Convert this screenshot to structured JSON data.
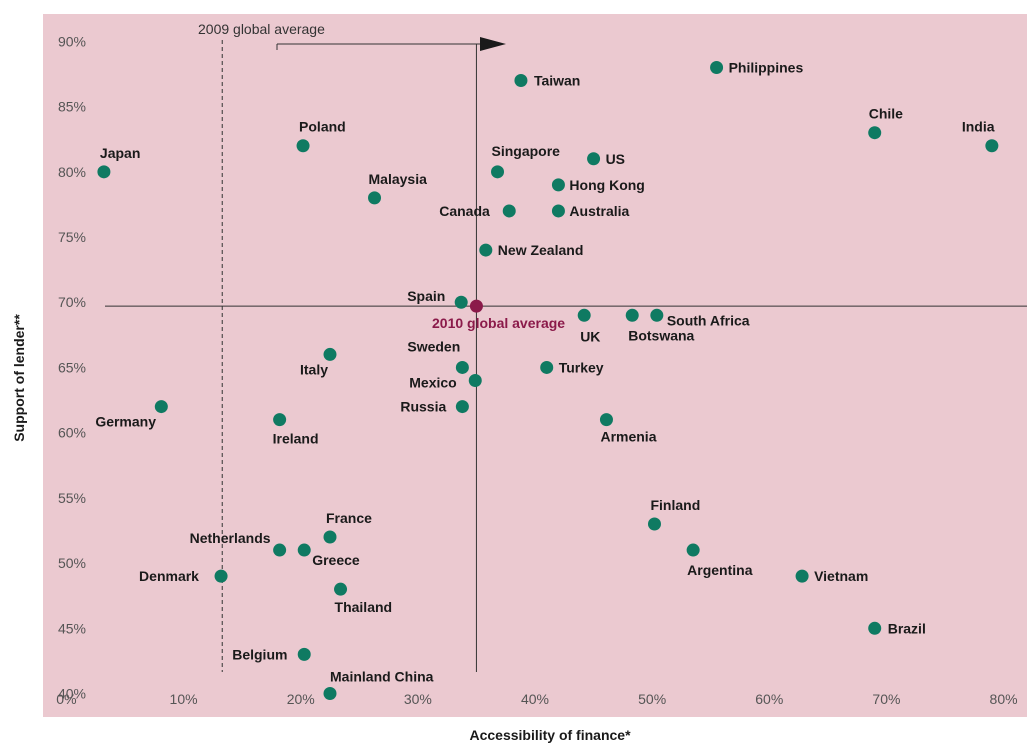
{
  "chart_data": {
    "type": "scatter",
    "xlabel": "Accessibility of finance*",
    "ylabel": "Support of lender**",
    "xlim": [
      -2,
      82
    ],
    "ylim": [
      38.2,
      92.1
    ],
    "x_ticks": [
      0,
      10,
      20,
      30,
      40,
      50,
      60,
      70,
      80
    ],
    "x_tick_labels": [
      "0%",
      "10%",
      "20%",
      "30%",
      "40%",
      "50%",
      "60%",
      "70%",
      "80%"
    ],
    "y_ticks": [
      40,
      45,
      50,
      55,
      60,
      65,
      70,
      75,
      80,
      85,
      90
    ],
    "y_tick_labels": [
      "40%",
      "45%",
      "50%",
      "55%",
      "60%",
      "65%",
      "70%",
      "75%",
      "80%",
      "85%",
      "90%"
    ],
    "grid": false,
    "colors": {
      "background": "#ebc9d0",
      "point": "#0f7a62",
      "highlight": "#8b1a4a",
      "line": "#333333"
    },
    "points": [
      {
        "label": "Japan",
        "x": 3.2,
        "y": 80
      },
      {
        "label": "Poland",
        "x": 20.2,
        "y": 82
      },
      {
        "label": "Malaysia",
        "x": 26.3,
        "y": 78
      },
      {
        "label": "Taiwan",
        "x": 38.8,
        "y": 87
      },
      {
        "label": "Philippines",
        "x": 55.5,
        "y": 88
      },
      {
        "label": "Chile",
        "x": 69,
        "y": 83
      },
      {
        "label": "India",
        "x": 79,
        "y": 82
      },
      {
        "label": "Singapore",
        "x": 36.8,
        "y": 80
      },
      {
        "label": "US",
        "x": 45,
        "y": 81
      },
      {
        "label": "Hong Kong",
        "x": 42,
        "y": 79
      },
      {
        "label": "Canada",
        "x": 37.8,
        "y": 77
      },
      {
        "label": "Australia",
        "x": 42,
        "y": 77
      },
      {
        "label": "New Zealand",
        "x": 35.8,
        "y": 74
      },
      {
        "label": "Spain",
        "x": 33.7,
        "y": 70
      },
      {
        "label": "UK",
        "x": 44.2,
        "y": 69
      },
      {
        "label": "Botswana",
        "x": 48.3,
        "y": 69
      },
      {
        "label": "South Africa",
        "x": 50.4,
        "y": 69
      },
      {
        "label": "Italy",
        "x": 22.5,
        "y": 66
      },
      {
        "label": "Sweden",
        "x": 33.8,
        "y": 65
      },
      {
        "label": "Turkey",
        "x": 41,
        "y": 65
      },
      {
        "label": "Mexico",
        "x": 34.9,
        "y": 64
      },
      {
        "label": "Russia",
        "x": 33.8,
        "y": 62
      },
      {
        "label": "Germany",
        "x": 8.1,
        "y": 62
      },
      {
        "label": "Ireland",
        "x": 18.2,
        "y": 61
      },
      {
        "label": "Armenia",
        "x": 46.1,
        "y": 61
      },
      {
        "label": "Finland",
        "x": 50.2,
        "y": 53
      },
      {
        "label": "Argentina",
        "x": 53.5,
        "y": 51
      },
      {
        "label": "Vietnam",
        "x": 62.8,
        "y": 49
      },
      {
        "label": "Brazil",
        "x": 69,
        "y": 45
      },
      {
        "label": "France",
        "x": 22.5,
        "y": 52
      },
      {
        "label": "Netherlands",
        "x": 18.2,
        "y": 51
      },
      {
        "label": "Greece",
        "x": 20.3,
        "y": 51
      },
      {
        "label": "Denmark",
        "x": 13.2,
        "y": 49
      },
      {
        "label": "Thailand",
        "x": 23.4,
        "y": 48
      },
      {
        "label": "Belgium",
        "x": 20.3,
        "y": 43
      },
      {
        "label": "Mainland China",
        "x": 22.5,
        "y": 40
      }
    ],
    "reference": {
      "global_2010": {
        "label": "2010 global average",
        "x": 35,
        "y": 69.7
      },
      "global_2009": {
        "label": "2009 global average",
        "x": 13.3
      }
    }
  }
}
